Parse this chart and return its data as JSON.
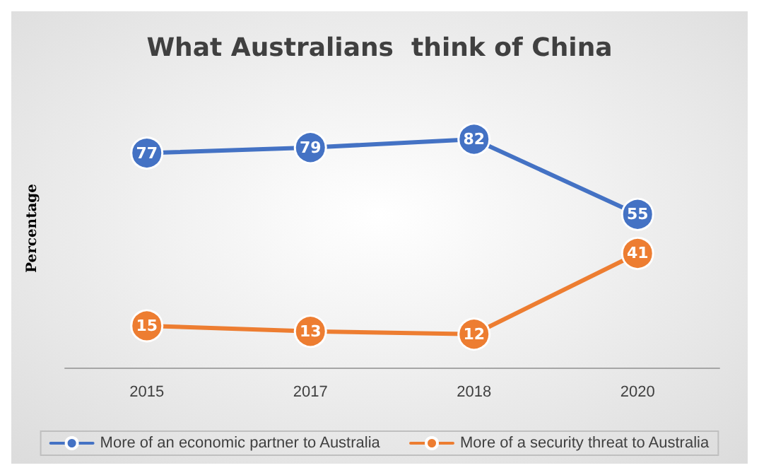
{
  "chart_data": {
    "type": "line",
    "title": "What Australians  think of China",
    "ylabel": "Percentage",
    "categories": [
      "2015",
      "2017",
      "2018",
      "2020"
    ],
    "series": [
      {
        "name": "More of an economic partner to Australia",
        "color": "#4472c4",
        "values": [
          77,
          79,
          82,
          55
        ]
      },
      {
        "name": "More of a security threat to Australia",
        "color": "#ed7d31",
        "values": [
          15,
          13,
          12,
          41
        ]
      }
    ],
    "tick_labels": "x",
    "data_labels": true,
    "grid": false,
    "legend": "bottom",
    "marker": "circle",
    "line_style": "solid"
  }
}
